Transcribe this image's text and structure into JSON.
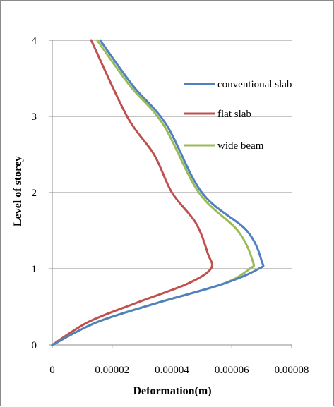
{
  "chart_data": {
    "type": "line",
    "xlabel": "Deformation(m)",
    "ylabel": "Level of storey",
    "xlim": [
      0,
      8e-05
    ],
    "ylim": [
      0,
      4
    ],
    "x_ticks": [
      "0",
      "0.00002",
      "0.00004",
      "0.00006",
      "0.00008"
    ],
    "y_ticks": [
      "0",
      "1",
      "2",
      "3",
      "4"
    ],
    "grid": "horizontal",
    "legend": "right",
    "series": [
      {
        "name": "conventional slab",
        "color": "#4f81bd",
        "x": [
          0,
          1.5e-05,
          3.5e-05,
          5.7e-05,
          6.9e-05,
          7e-05,
          6.5e-05,
          5e-05,
          3.8e-05,
          2.7e-05,
          1.6e-05
        ],
        "y": [
          0,
          0.3,
          0.55,
          0.8,
          1.0,
          1.1,
          1.5,
          2.0,
          2.9,
          3.4,
          4.0
        ]
      },
      {
        "name": "flat slab",
        "color": "#c0504d",
        "x": [
          0,
          1.2e-05,
          2.8e-05,
          4.5e-05,
          5.3e-05,
          5.2e-05,
          4.8e-05,
          4e-05,
          3.4e-05,
          2.5e-05,
          1.3e-05
        ],
        "y": [
          0,
          0.3,
          0.55,
          0.8,
          1.0,
          1.2,
          1.6,
          2.0,
          2.5,
          3.0,
          4.0
        ]
      },
      {
        "name": "wide beam",
        "color": "#9bbb59",
        "x": [
          0,
          1.5e-05,
          3.5e-05,
          5.7e-05,
          6.6e-05,
          6.7e-05,
          6.2e-05,
          4.9e-05,
          3.7e-05,
          2.6e-05,
          1.5e-05
        ],
        "y": [
          0,
          0.3,
          0.55,
          0.8,
          1.0,
          1.1,
          1.5,
          2.0,
          2.9,
          3.4,
          4.0
        ]
      }
    ]
  }
}
